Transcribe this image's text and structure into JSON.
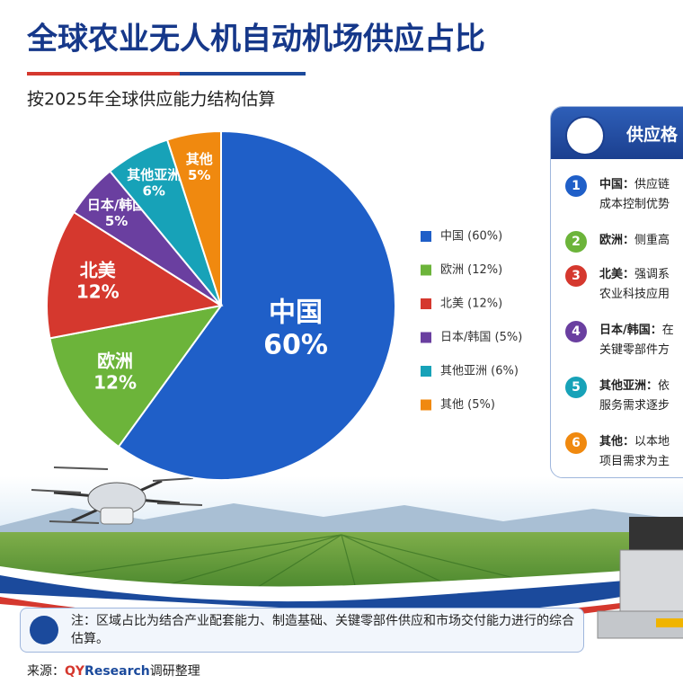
{
  "chart_data": {
    "type": "pie",
    "title": "全球农业无人机自动机场供应占比",
    "subtitle": "按2025年全球供应能力结构估算",
    "categories": [
      "中国",
      "欧洲",
      "北美",
      "日本/韩国",
      "其他亚洲",
      "其他"
    ],
    "values": [
      60,
      12,
      12,
      5,
      6,
      5
    ],
    "value_labels": [
      "60%",
      "12%",
      "12%",
      "5%",
      "6%",
      "5%"
    ],
    "legend_labels": [
      "中国 (60%)",
      "欧洲 (12%)",
      "北美 (12%)",
      "日本/韩国 (5%)",
      "其他亚洲 (6%)",
      "其他 (5%)"
    ],
    "colors": [
      "#1f5fc8",
      "#6cb43a",
      "#d5382e",
      "#6a3fa0",
      "#17a2b8",
      "#f0890f"
    ],
    "legend": "right"
  },
  "panel": {
    "title": "供应格",
    "items": [
      {
        "number": "1",
        "lead": "中国：",
        "text": "供应链",
        "line2": "成本控制优势"
      },
      {
        "number": "2",
        "lead": "欧洲：",
        "text": "侧重高",
        "line2": ""
      },
      {
        "number": "3",
        "lead": "北美：",
        "text": "强调系",
        "line2": "农业科技应用"
      },
      {
        "number": "4",
        "lead": "日本/韩国：",
        "text": "在",
        "line2": "关键零部件方"
      },
      {
        "number": "5",
        "lead": "其他亚洲：",
        "text": "依",
        "line2": "服务需求逐步"
      },
      {
        "number": "6",
        "lead": "其他：",
        "text": "以本地",
        "line2": "项目需求为主"
      }
    ]
  },
  "note": "注：区域占比为结合产业配套能力、制造基础、关键零部件供应和市场交付能力进行的综合估算。",
  "source": {
    "label": "来源：",
    "brand_a": "QY",
    "brand_b": "Research",
    "rest": "调研整理"
  }
}
